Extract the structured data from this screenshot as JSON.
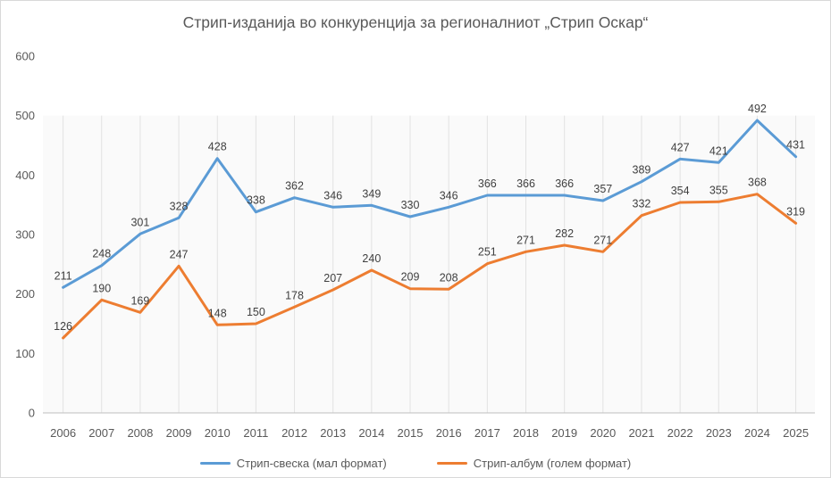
{
  "title": "Стрип-изданија во конкуренција за регионалниот „Стрип Оскар“",
  "colors": {
    "series1": "#5B9BD5",
    "series2": "#ED7D31",
    "axis_line": "#bfbfbf",
    "gridline": "#e2e2e2",
    "plot_band": "#fafafa",
    "axis_text": "#595959",
    "data_label_text": "#404040",
    "title_text": "#595959"
  },
  "chart_data": {
    "type": "line",
    "title": "Стрип-изданија во конкуренција за регионалниот „Стрип Оскар“",
    "categories": [
      "2006",
      "2007",
      "2008",
      "2009",
      "2010",
      "2011",
      "2012",
      "2013",
      "2014",
      "2015",
      "2016",
      "2017",
      "2018",
      "2019",
      "2020",
      "2021",
      "2022",
      "2023",
      "2024",
      "2025"
    ],
    "series": [
      {
        "name": "Стрип-свеска (мал формат)",
        "color": "#5B9BD5",
        "values": [
          211,
          248,
          301,
          328,
          428,
          338,
          362,
          346,
          349,
          330,
          346,
          366,
          366,
          366,
          357,
          389,
          427,
          421,
          492,
          431
        ]
      },
      {
        "name": "Стрип-албум (голем формат)",
        "color": "#ED7D31",
        "values": [
          126,
          190,
          169,
          247,
          148,
          150,
          178,
          207,
          240,
          209,
          208,
          251,
          271,
          282,
          271,
          332,
          354,
          355,
          368,
          319
        ]
      }
    ],
    "xlabel": "",
    "ylabel": "",
    "ylim": [
      0,
      600
    ],
    "yticks": [
      0,
      100,
      200,
      300,
      400,
      500,
      600
    ],
    "grid": "vertical-only",
    "legend_position": "bottom",
    "data_labels": true
  }
}
